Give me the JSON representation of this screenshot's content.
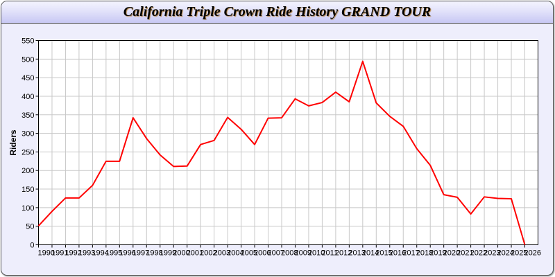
{
  "window": {
    "title": "California Triple Crown Ride History GRAND TOUR"
  },
  "chart_data": {
    "type": "line",
    "title": "California Triple Crown Ride History GRAND TOUR",
    "xlabel": "",
    "ylabel": "Riders",
    "x": [
      1990,
      1991,
      1992,
      1993,
      1994,
      1995,
      1996,
      1997,
      1998,
      1999,
      2000,
      2001,
      2002,
      2003,
      2004,
      2005,
      2006,
      2007,
      2008,
      2009,
      2010,
      2011,
      2012,
      2013,
      2014,
      2015,
      2016,
      2017,
      2018,
      2019,
      2020,
      2021,
      2022,
      2023,
      2024,
      2025,
      2026
    ],
    "series": [
      {
        "values": [
          51,
          90,
          126,
          126,
          160,
          225,
          225,
          342,
          286,
          242,
          211,
          212,
          270,
          281,
          343,
          311,
          270,
          341,
          342,
          393,
          374,
          383,
          411,
          385,
          494,
          382,
          346,
          319,
          259,
          214,
          135,
          128,
          83,
          129,
          125,
          124,
          0
        ],
        "color": "#ff0000"
      }
    ],
    "ylim": [
      0,
      550
    ],
    "yticks": [
      0,
      50,
      100,
      150,
      200,
      250,
      300,
      350,
      400,
      450,
      500,
      550
    ],
    "grid": true,
    "grid_color": "#c8c8c8",
    "legend": "none"
  }
}
